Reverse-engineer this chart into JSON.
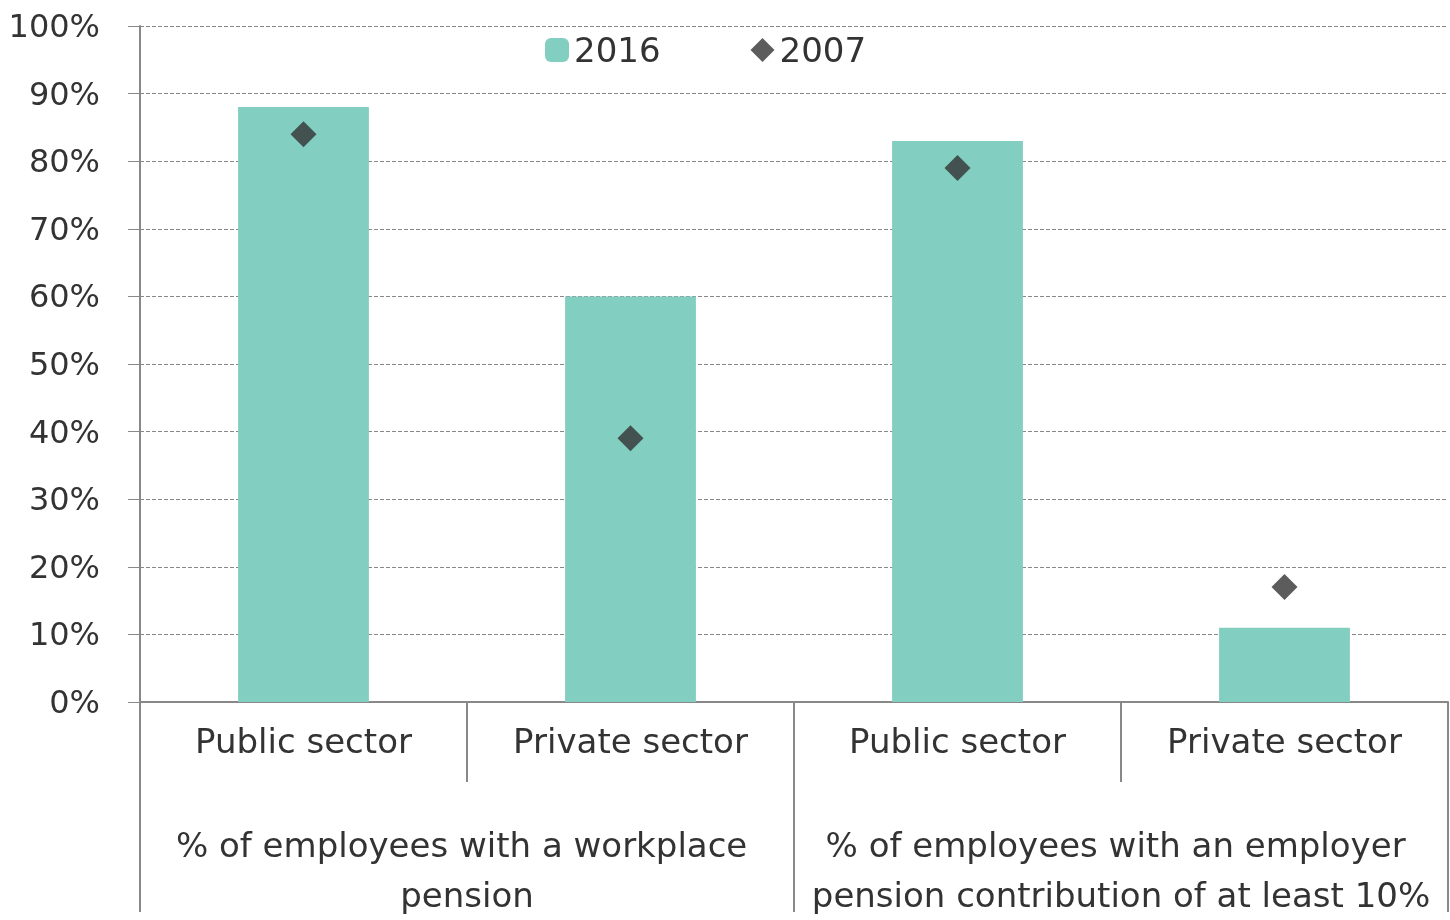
{
  "chart_data": {
    "type": "bar",
    "categories": [
      "Public sector",
      "Private sector",
      "Public sector",
      "Private sector"
    ],
    "series": [
      {
        "name": "2016",
        "color": "#82cec0",
        "values": [
          88,
          60,
          83,
          11
        ]
      },
      {
        "name": "2007",
        "type": "scatter",
        "color": "#333333",
        "values": [
          84,
          39,
          79,
          17
        ],
        "marker": "diamond"
      }
    ],
    "annotations": [
      "% of employees with a workplace pension",
      "% of employees with an employer pension contribution of at least 10%"
    ],
    "ylim": [
      0,
      100
    ],
    "yticks": [
      {
        "value": 0,
        "label": "0%"
      },
      {
        "value": 10,
        "label": "10%"
      },
      {
        "value": 20,
        "label": "20%"
      },
      {
        "value": 30,
        "label": "30%"
      },
      {
        "value": 40,
        "label": "40%"
      },
      {
        "value": 50,
        "label": "50%"
      },
      {
        "value": 60,
        "label": "60%"
      },
      {
        "value": 70,
        "label": "70%"
      },
      {
        "value": 80,
        "label": "80%"
      },
      {
        "value": 90,
        "label": "90%"
      },
      {
        "value": 100,
        "label": "100%"
      }
    ],
    "grid": "y",
    "legend": "top"
  }
}
